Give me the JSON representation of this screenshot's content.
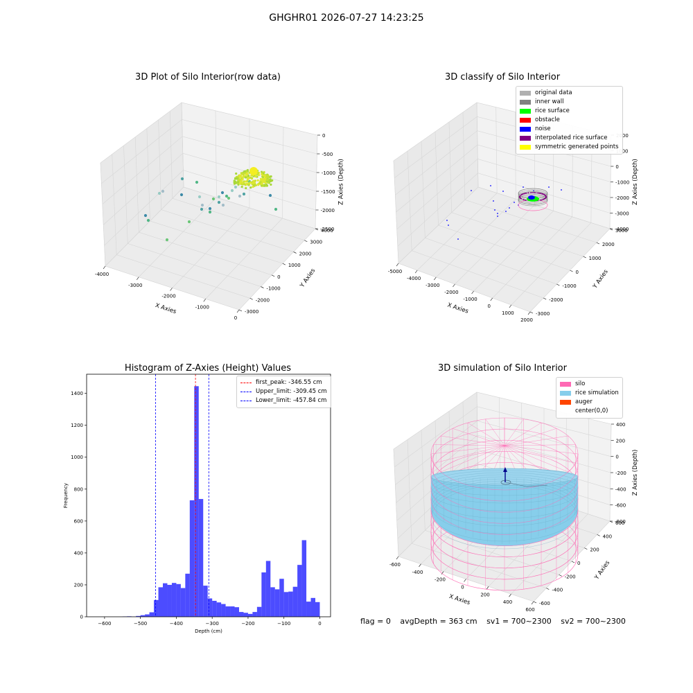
{
  "suptitle": "GHGHR01 2026-07-27 14:23:25",
  "footer": {
    "flag": "flag = 0",
    "avg_depth": "avgDepth = 363 cm",
    "sv1": "sv1 = 700~2300",
    "sv2": "sv2 = 700~2300"
  },
  "chart_data": [
    {
      "type": "scatter",
      "title": "3D Plot of Silo Interior(row data)",
      "projection": "3d",
      "xlabel": "X Axies",
      "ylabel": "Y Axies",
      "zlabel": "Z Axies (Depth)",
      "x_ticks": [
        "-4000",
        "-3000",
        "-2000",
        "-1000",
        "0"
      ],
      "y_ticks": [
        "-3000",
        "-2000",
        "-1000",
        "0",
        "1000",
        "2000",
        "3000",
        "4000"
      ],
      "z_ticks": [
        "0",
        "-500",
        "-1000",
        "-1500",
        "-2000",
        "-2500"
      ],
      "grid": true,
      "colormap": "viridis",
      "colors": {
        "scatter_low": "#2a7fa0",
        "scatter_mid": "#3fb07a",
        "scatter_high": "#d8e830",
        "pane": "#f2f2f2",
        "grid": "#d6d6d6"
      }
    },
    {
      "type": "scatter",
      "title": "3D classify of Silo Interior",
      "projection": "3d",
      "xlabel": "X Axies",
      "ylabel": "Y Axies",
      "zlabel": "Z Axies (Depth)",
      "x_ticks": [
        "-5000",
        "-4000",
        "-3000",
        "-2000",
        "-1000",
        "0",
        "1000",
        "2000"
      ],
      "y_ticks": [
        "-3000",
        "-2000",
        "-1000",
        "0",
        "1000",
        "2000",
        "3000"
      ],
      "z_ticks": [
        "2000",
        "1000",
        "0",
        "-1000",
        "-2000",
        "-3000",
        "-4000"
      ],
      "grid": true,
      "legend_position": "top-right",
      "legend": [
        {
          "label": "original data",
          "color": "#b0b0b0"
        },
        {
          "label": "inner wall",
          "color": "#808080"
        },
        {
          "label": "rice surface",
          "color": "#00ff00"
        },
        {
          "label": "obstacle",
          "color": "#ff0000"
        },
        {
          "label": "noise",
          "color": "#0000ff"
        },
        {
          "label": "interpolated rice surface",
          "color": "#800080"
        },
        {
          "label": "symmetric generated points",
          "color": "#ffff00"
        }
      ]
    },
    {
      "type": "bar",
      "title": "Histogram of Z-Axies (Height) Values",
      "xlabel": "Depth (cm)",
      "ylabel": "Frequency",
      "xlim": [
        -650,
        30
      ],
      "ylim": [
        0,
        1520
      ],
      "x_ticks": [
        -600,
        -500,
        -400,
        -300,
        -200,
        -100,
        0
      ],
      "y_ticks": [
        0,
        200,
        400,
        600,
        800,
        1000,
        1200,
        1400
      ],
      "bin_width": 12.5,
      "bins": [
        {
          "x": -550,
          "y": 2
        },
        {
          "x": -537.5,
          "y": 3
        },
        {
          "x": -525,
          "y": 1
        },
        {
          "x": -512.5,
          "y": 5
        },
        {
          "x": -500,
          "y": 10
        },
        {
          "x": -487.5,
          "y": 15
        },
        {
          "x": -475,
          "y": 28
        },
        {
          "x": -462.5,
          "y": 105
        },
        {
          "x": -450,
          "y": 185
        },
        {
          "x": -437.5,
          "y": 210
        },
        {
          "x": -425,
          "y": 200
        },
        {
          "x": -412.5,
          "y": 212
        },
        {
          "x": -400,
          "y": 205
        },
        {
          "x": -387.5,
          "y": 180
        },
        {
          "x": -375,
          "y": 270
        },
        {
          "x": -362.5,
          "y": 730
        },
        {
          "x": -350,
          "y": 1445
        },
        {
          "x": -337.5,
          "y": 738
        },
        {
          "x": -325,
          "y": 195
        },
        {
          "x": -312.5,
          "y": 115
        },
        {
          "x": -300,
          "y": 100
        },
        {
          "x": -287.5,
          "y": 90
        },
        {
          "x": -275,
          "y": 80
        },
        {
          "x": -262.5,
          "y": 65
        },
        {
          "x": -250,
          "y": 65
        },
        {
          "x": -237.5,
          "y": 60
        },
        {
          "x": -225,
          "y": 30
        },
        {
          "x": -212.5,
          "y": 25
        },
        {
          "x": -200,
          "y": 18
        },
        {
          "x": -187.5,
          "y": 30
        },
        {
          "x": -175,
          "y": 62
        },
        {
          "x": -162.5,
          "y": 278
        },
        {
          "x": -150,
          "y": 350
        },
        {
          "x": -137.5,
          "y": 185
        },
        {
          "x": -125,
          "y": 172
        },
        {
          "x": -112.5,
          "y": 238
        },
        {
          "x": -100,
          "y": 155
        },
        {
          "x": -87.5,
          "y": 158
        },
        {
          "x": -75,
          "y": 188
        },
        {
          "x": -62.5,
          "y": 325
        },
        {
          "x": -50,
          "y": 480
        },
        {
          "x": -37.5,
          "y": 95
        },
        {
          "x": -25,
          "y": 118
        },
        {
          "x": -12.5,
          "y": 92
        }
      ],
      "bar_color": "#0000ff",
      "vlines": [
        {
          "x": -346.55,
          "label": "first_peak: -346.55 cm",
          "color": "#ff0000"
        },
        {
          "x": -309.45,
          "label": "Upper_limit: -309.45 cm",
          "color": "#0000ff"
        },
        {
          "x": -457.84,
          "label": "Lower_limit: -457.84 cm",
          "color": "#0000ff"
        }
      ],
      "legend_position": "top-right"
    },
    {
      "type": "surface",
      "title": "3D simulation of Silo Interior",
      "projection": "3d",
      "xlabel": "X Axies",
      "ylabel": "Y Axies",
      "zlabel": "Z Axies (Depth)",
      "x_ticks": [
        "-600",
        "-400",
        "-200",
        "0",
        "200",
        "400",
        "600"
      ],
      "y_ticks": [
        "-600",
        "-400",
        "-200",
        "0",
        "200",
        "400",
        "600"
      ],
      "z_ticks": [
        "400",
        "200",
        "0",
        "-200",
        "-400",
        "-600",
        "-800"
      ],
      "grid": true,
      "legend_position": "top-right",
      "legend": [
        {
          "label": "silo",
          "color": "#ff69b4"
        },
        {
          "label": "rice simulation",
          "color": "#87ceeb"
        },
        {
          "label": "auger",
          "color": "#ff4500"
        },
        {
          "label": "center(0,0)",
          "color": "#00008b"
        }
      ]
    }
  ]
}
